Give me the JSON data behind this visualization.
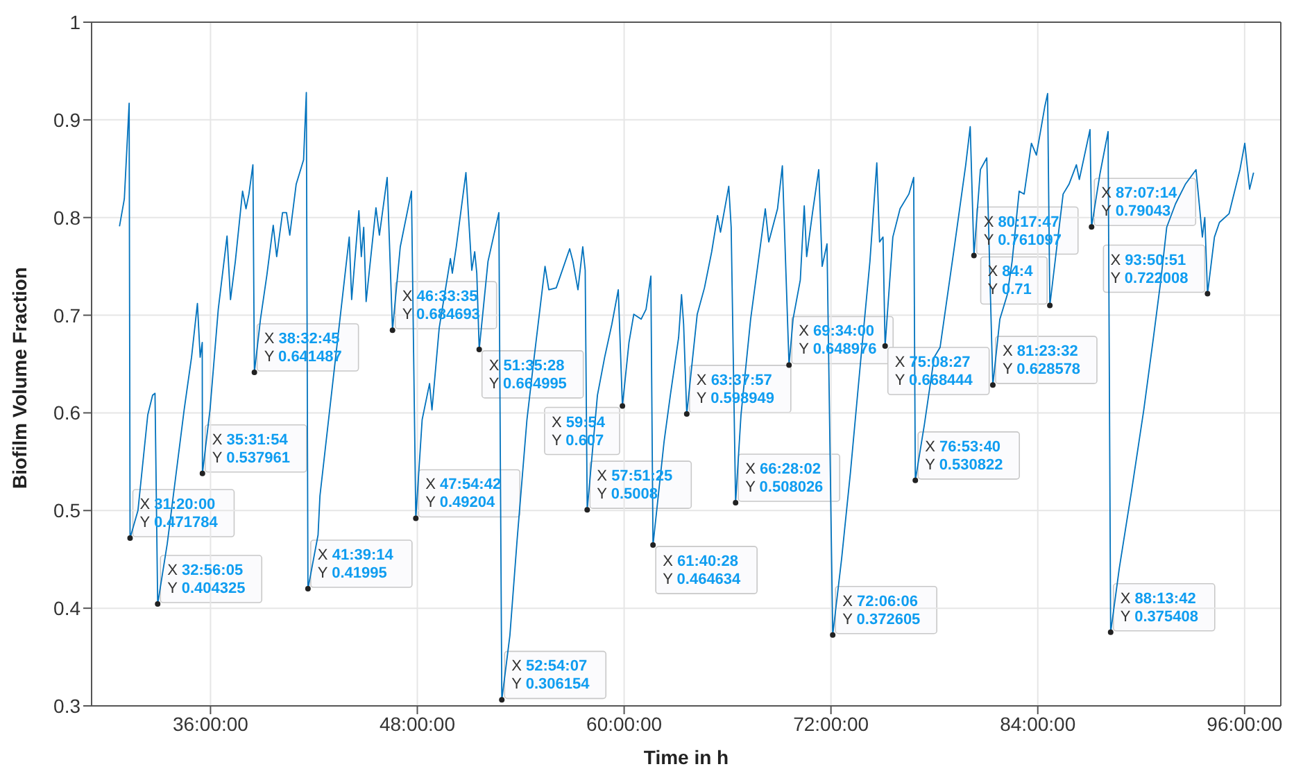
{
  "chart_data": {
    "type": "line",
    "xlabel": "Time in h",
    "ylabel": "Biofilm Volume Fraction",
    "xlim": [
      29.1,
      98.1
    ],
    "ylim": [
      0.3,
      1
    ],
    "xticks": [
      {
        "value": 36,
        "label": "36:00:00"
      },
      {
        "value": 48,
        "label": "48:00:00"
      },
      {
        "value": 60,
        "label": "60:00:00"
      },
      {
        "value": 72,
        "label": "72:00:00"
      },
      {
        "value": 84,
        "label": "84:00:00"
      },
      {
        "value": 96,
        "label": "96:00:00"
      }
    ],
    "yticks": [
      0.3,
      0.4,
      0.5,
      0.6,
      0.7,
      0.8,
      0.9,
      1
    ],
    "grid": true,
    "marker": "none",
    "line_style": "solid",
    "series": [
      {
        "color": "#0072bd",
        "x": [
          30.72,
          31.0,
          31.28,
          31.333,
          31.79,
          32.36,
          32.64,
          32.78,
          32.935,
          33.49,
          34.47,
          34.9,
          35.24,
          35.4,
          35.52,
          35.532,
          35.97,
          36.45,
          36.96,
          37.16,
          37.44,
          37.86,
          38.06,
          38.23,
          38.46,
          38.546,
          38.9,
          39.27,
          39.64,
          39.84,
          40.18,
          40.41,
          40.6,
          40.97,
          41.4,
          41.56,
          41.654,
          42.24,
          42.35,
          44.05,
          44.19,
          44.61,
          44.75,
          44.89,
          45.03,
          45.6,
          45.8,
          46.25,
          46.56,
          47.01,
          47.66,
          47.912,
          48.28,
          48.71,
          48.85,
          49.27,
          49.92,
          50.03,
          50.26,
          50.82,
          51.16,
          51.33,
          51.45,
          51.591,
          52.1,
          52.73,
          52.902,
          53.37,
          53.79,
          54.36,
          54.78,
          55.41,
          55.63,
          56.06,
          56.84,
          57.03,
          57.32,
          57.6,
          57.74,
          57.857,
          58.45,
          58.87,
          59.29,
          59.66,
          59.9,
          60.28,
          60.56,
          60.99,
          61.27,
          61.55,
          61.674,
          62.32,
          62.68,
          63.16,
          63.33,
          63.45,
          63.633,
          64.24,
          64.66,
          65.08,
          65.42,
          65.59,
          66.07,
          66.21,
          66.467,
          66.78,
          67.34,
          68.19,
          68.39,
          68.9,
          69.18,
          69.567,
          69.8,
          70.22,
          70.45,
          70.59,
          70.93,
          71.29,
          71.49,
          71.77,
          72.102,
          72.62,
          73.13,
          73.69,
          74.26,
          74.66,
          74.82,
          75.02,
          75.141,
          75.59,
          76.01,
          76.52,
          76.8,
          76.894,
          77.42,
          77.99,
          78.33,
          79.12,
          79.82,
          80.08,
          80.296,
          80.67,
          81.04,
          81.392,
          81.8,
          82.23,
          82.51,
          82.92,
          83.21,
          83.63,
          83.92,
          84.4,
          84.57,
          84.7,
          85.47,
          85.81,
          86.24,
          86.41,
          87.03,
          87.121,
          87.6,
          88.08,
          88.228,
          88.73,
          89.44,
          90.15,
          90.71,
          91.14,
          91.48,
          91.99,
          92.56,
          93.18,
          93.55,
          93.69,
          93.848,
          94.25,
          94.54,
          95.1,
          95.73,
          96.01,
          96.29,
          96.52
        ],
        "values": [
          0.791,
          0.819,
          0.917,
          0.471784,
          0.5,
          0.598,
          0.618,
          0.62,
          0.404325,
          0.466,
          0.603,
          0.657,
          0.712,
          0.657,
          0.672,
          0.537961,
          0.603,
          0.706,
          0.781,
          0.716,
          0.755,
          0.827,
          0.809,
          0.824,
          0.854,
          0.641487,
          0.696,
          0.741,
          0.792,
          0.76,
          0.805,
          0.805,
          0.782,
          0.834,
          0.859,
          0.928,
          0.41995,
          0.475,
          0.515,
          0.78,
          0.716,
          0.807,
          0.76,
          0.79,
          0.714,
          0.81,
          0.782,
          0.841,
          0.684693,
          0.77,
          0.827,
          0.49204,
          0.593,
          0.63,
          0.603,
          0.687,
          0.758,
          0.743,
          0.77,
          0.846,
          0.746,
          0.765,
          0.743,
          0.664995,
          0.755,
          0.805,
          0.306154,
          0.372,
          0.47,
          0.593,
          0.657,
          0.75,
          0.726,
          0.728,
          0.768,
          0.755,
          0.726,
          0.77,
          0.746,
          0.5008,
          0.618,
          0.657,
          0.691,
          0.726,
          0.607,
          0.672,
          0.701,
          0.696,
          0.706,
          0.74,
          0.464634,
          0.571,
          0.618,
          0.677,
          0.721,
          0.691,
          0.598949,
          0.701,
          0.728,
          0.765,
          0.802,
          0.785,
          0.832,
          0.79,
          0.508026,
          0.598,
          0.696,
          0.809,
          0.775,
          0.809,
          0.853,
          0.648976,
          0.696,
          0.736,
          0.812,
          0.76,
          0.805,
          0.849,
          0.75,
          0.773,
          0.372605,
          0.451,
          0.539,
          0.647,
          0.755,
          0.856,
          0.775,
          0.78,
          0.668444,
          0.78,
          0.809,
          0.824,
          0.841,
          0.530822,
          0.588,
          0.657,
          0.667,
          0.765,
          0.854,
          0.893,
          0.761097,
          0.849,
          0.861,
          0.628578,
          0.696,
          0.721,
          0.755,
          0.827,
          0.824,
          0.876,
          0.864,
          0.913,
          0.927,
          0.71,
          0.824,
          0.834,
          0.854,
          0.839,
          0.89,
          0.79043,
          0.844,
          0.888,
          0.375408,
          0.441,
          0.52,
          0.603,
          0.677,
          0.736,
          0.79,
          0.814,
          0.834,
          0.849,
          0.78,
          0.8,
          0.722008,
          0.78,
          0.795,
          0.804,
          0.849,
          0.876,
          0.829,
          0.846
        ]
      }
    ],
    "annotations": [
      {
        "text": "X 31:20:00\nY 0.471784",
        "x": 31.333,
        "y": 0.471784
      },
      {
        "text": "X 32:56:05\nY 0.404325",
        "x": 32.935,
        "y": 0.404325
      },
      {
        "text": "X 35:31:54\nY 0.537961",
        "x": 35.532,
        "y": 0.537961
      },
      {
        "text": "X 38:32:45\nY 0.641487",
        "x": 38.546,
        "y": 0.641487
      },
      {
        "text": "X 41:39:14\nY 0.41995",
        "x": 41.654,
        "y": 0.41995
      },
      {
        "text": "X 46:33:35\nY 0.684693",
        "x": 46.56,
        "y": 0.684693
      },
      {
        "text": "X 47:54:42\nY 0.49204",
        "x": 47.912,
        "y": 0.49204
      },
      {
        "text": "X 51:35:28\nY 0.664995",
        "x": 51.591,
        "y": 0.664995
      },
      {
        "text": "X 52:54:07\nY 0.306154",
        "x": 52.902,
        "y": 0.306154
      },
      {
        "text": "X 57:51:25\nY 0.5008",
        "x": 57.857,
        "y": 0.5008
      },
      {
        "text": "X 59:54\nY 0.607",
        "x": 59.9,
        "y": 0.607
      },
      {
        "text": "X 61:40:28\nY 0.464634",
        "x": 61.674,
        "y": 0.464634
      },
      {
        "text": "X 63:37:57\nY 0.598949",
        "x": 63.633,
        "y": 0.598949
      },
      {
        "text": "X 66:28:02\nY 0.508026",
        "x": 66.467,
        "y": 0.508026
      },
      {
        "text": "X 69:34:00\nY 0.648976",
        "x": 69.567,
        "y": 0.648976
      },
      {
        "text": "X 72:06:06\nY 0.372605",
        "x": 72.102,
        "y": 0.372605
      },
      {
        "text": "X 75:08:27\nY 0.668444",
        "x": 75.141,
        "y": 0.668444
      },
      {
        "text": "X 76:53:40\nY 0.530822",
        "x": 76.894,
        "y": 0.530822
      },
      {
        "text": "X 80:17:47\nY 0.761097",
        "x": 80.296,
        "y": 0.761097
      },
      {
        "text": "X 81:23:32\nY 0.628578",
        "x": 81.392,
        "y": 0.628578
      },
      {
        "text": "X 84:4\nY 0.71",
        "x": 84.7,
        "y": 0.71
      },
      {
        "text": "X 87:07:14\nY 0.79043",
        "x": 87.121,
        "y": 0.79043
      },
      {
        "text": "X 88:13:42\nY 0.375408",
        "x": 88.228,
        "y": 0.375408
      },
      {
        "text": "X 93:50:51\nY 0.722008",
        "x": 93.848,
        "y": 0.722008
      }
    ]
  }
}
